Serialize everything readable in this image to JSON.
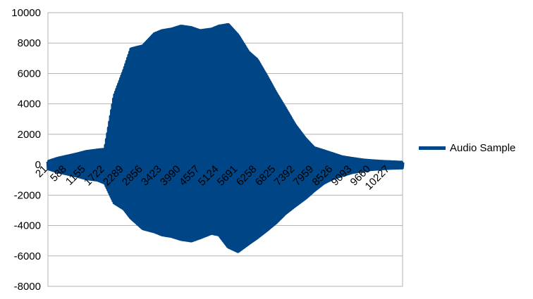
{
  "chart_data": {
    "type": "line",
    "title": "",
    "xlabel": "",
    "ylabel": "",
    "ylim": [
      -8000,
      10000
    ],
    "y_ticks": [
      -8000,
      -6000,
      -4000,
      -2000,
      0,
      2000,
      4000,
      6000,
      8000,
      10000
    ],
    "x_range": [
      21,
      10600
    ],
    "x_tick_labels": [
      "21",
      "588",
      "1155",
      "1722",
      "2289",
      "2856",
      "3423",
      "3990",
      "4557",
      "5124",
      "5691",
      "6258",
      "6825",
      "7392",
      "7959",
      "8526",
      "9093",
      "9660",
      "10227"
    ],
    "grid": "horizontal",
    "legend_position": "right",
    "series": [
      {
        "name": "Audio Sample",
        "color": "#004586",
        "envelope": {
          "x": [
            21,
            300,
            600,
            900,
            1155,
            1500,
            1722,
            2000,
            2289,
            2500,
            2856,
            3200,
            3423,
            3700,
            3990,
            4300,
            4557,
            4900,
            5124,
            5400,
            5691,
            6000,
            6258,
            6550,
            6825,
            7100,
            7392,
            7700,
            7959,
            8250,
            8526,
            8800,
            9093,
            9400,
            9660,
            10000,
            10227,
            10500
          ],
          "max": [
            200,
            400,
            550,
            700,
            850,
            950,
            1000,
            4500,
            6200,
            7600,
            7800,
            8600,
            8800,
            8900,
            9100,
            9000,
            8800,
            8900,
            9100,
            9200,
            8500,
            7400,
            6900,
            5800,
            4700,
            3700,
            2600,
            1700,
            1100,
            900,
            700,
            500,
            400,
            300,
            250,
            200,
            180,
            150
          ],
          "min": [
            -250,
            -450,
            -600,
            -750,
            -900,
            -1000,
            -1200,
            -2500,
            -2900,
            -3500,
            -4200,
            -4400,
            -4600,
            -4700,
            -4900,
            -5000,
            -4800,
            -4500,
            -4600,
            -5400,
            -5700,
            -5200,
            -4800,
            -4300,
            -3800,
            -3200,
            -2700,
            -2200,
            -1700,
            -1200,
            -900,
            -700,
            -500,
            -400,
            -300,
            -250,
            -220,
            -200
          ]
        }
      }
    ]
  }
}
